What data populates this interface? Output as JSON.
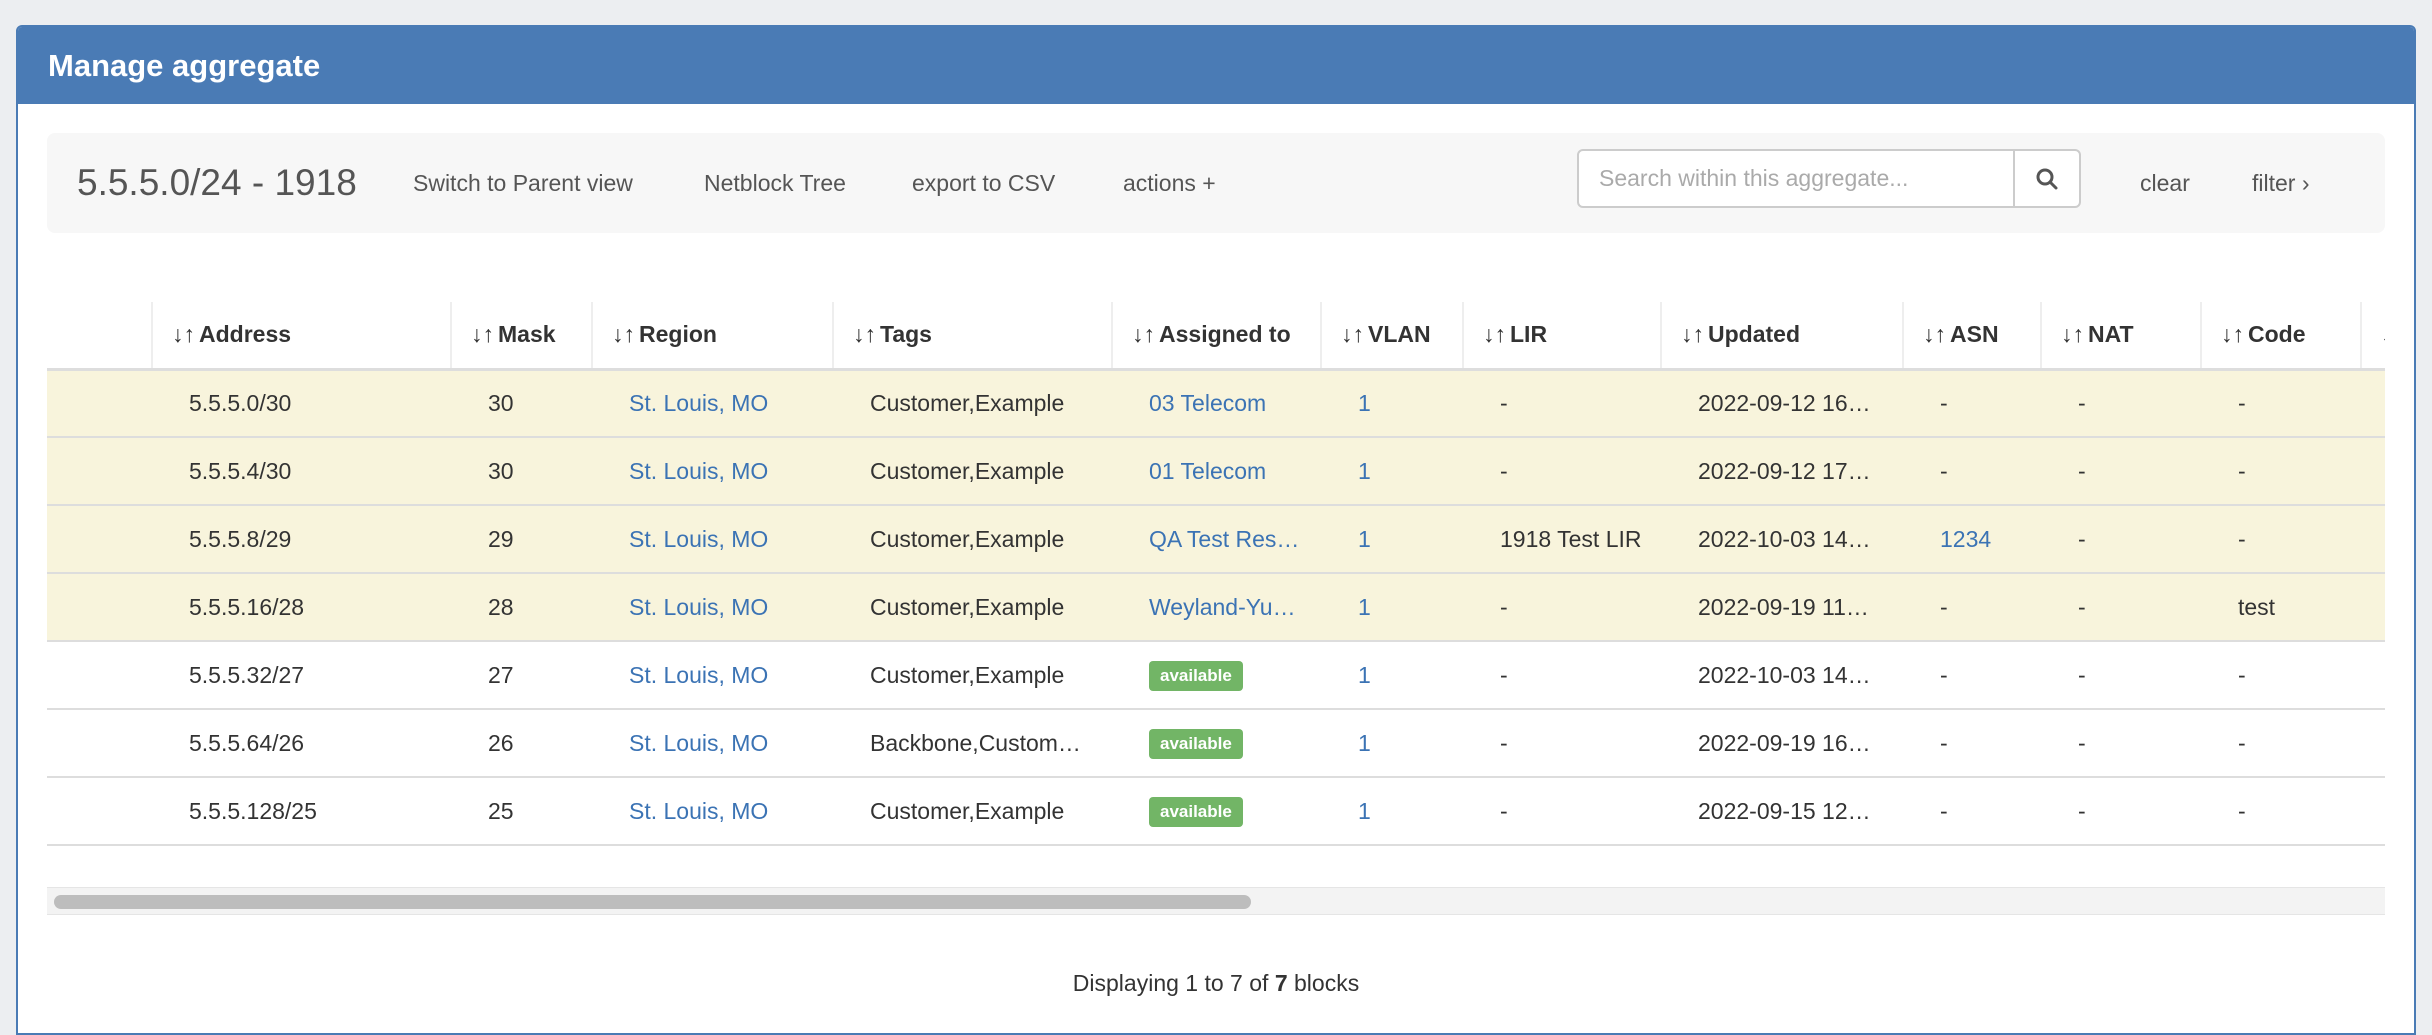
{
  "window": {
    "title": "Manage aggregate"
  },
  "toolbar": {
    "title": "5.5.5.0/24 - 1918",
    "switch_parent": "Switch to Parent view",
    "netblock_tree": "Netblock Tree",
    "export_csv": "export to CSV",
    "actions": "actions +",
    "search_placeholder": "Search within this aggregate...",
    "search_value": "",
    "clear": "clear",
    "filter": "filter ›"
  },
  "table": {
    "sort_icon": "↓↑",
    "columns": [
      "",
      "Address",
      "Mask",
      "Region",
      "Tags",
      "Assigned to",
      "VLAN",
      "LIR",
      "Updated",
      "ASN",
      "NAT",
      "Code",
      ""
    ],
    "rows": [
      {
        "highlight": true,
        "address": "5.5.5.0/30",
        "mask": "30",
        "region": "St. Louis, MO",
        "tags": "Customer,Example",
        "assigned": "03 Telecom",
        "assigned_badge": false,
        "vlan": "1",
        "lir": "-",
        "updated": "2022-09-12 16…",
        "asn": "-",
        "asn_link": false,
        "nat": "-",
        "code": "-"
      },
      {
        "highlight": true,
        "address": "5.5.5.4/30",
        "mask": "30",
        "region": "St. Louis, MO",
        "tags": "Customer,Example",
        "assigned": "01 Telecom",
        "assigned_badge": false,
        "vlan": "1",
        "lir": "-",
        "updated": "2022-09-12 17…",
        "asn": "-",
        "asn_link": false,
        "nat": "-",
        "code": "-"
      },
      {
        "highlight": true,
        "address": "5.5.5.8/29",
        "mask": "29",
        "region": "St. Louis, MO",
        "tags": "Customer,Example",
        "assigned": "QA Test Res…",
        "assigned_badge": false,
        "vlan": "1",
        "lir": "1918 Test LIR",
        "updated": "2022-10-03 14…",
        "asn": "1234",
        "asn_link": true,
        "nat": "-",
        "code": "-"
      },
      {
        "highlight": true,
        "address": "5.5.5.16/28",
        "mask": "28",
        "region": "St. Louis, MO",
        "tags": "Customer,Example",
        "assigned": "Weyland-Yu…",
        "assigned_badge": false,
        "vlan": "1",
        "lir": "-",
        "updated": "2022-09-19 11…",
        "asn": "-",
        "asn_link": false,
        "nat": "-",
        "code": "test"
      },
      {
        "highlight": false,
        "address": "5.5.5.32/27",
        "mask": "27",
        "region": "St. Louis, MO",
        "tags": "Customer,Example",
        "assigned": "available",
        "assigned_badge": true,
        "vlan": "1",
        "lir": "-",
        "updated": "2022-10-03 14…",
        "asn": "-",
        "asn_link": false,
        "nat": "-",
        "code": "-"
      },
      {
        "highlight": false,
        "address": "5.5.5.64/26",
        "mask": "26",
        "region": "St. Louis, MO",
        "tags": "Backbone,Custom…",
        "assigned": "available",
        "assigned_badge": true,
        "vlan": "1",
        "lir": "-",
        "updated": "2022-09-19 16…",
        "asn": "-",
        "asn_link": false,
        "nat": "-",
        "code": "-"
      },
      {
        "highlight": false,
        "address": "5.5.5.128/25",
        "mask": "25",
        "region": "St. Louis, MO",
        "tags": "Customer,Example",
        "assigned": "available",
        "assigned_badge": true,
        "vlan": "1",
        "lir": "-",
        "updated": "2022-09-15 12…",
        "asn": "-",
        "asn_link": false,
        "nat": "-",
        "code": "-"
      }
    ]
  },
  "footer": {
    "prefix": "Displaying 1 to 7 of ",
    "count": "7",
    "suffix": " blocks"
  },
  "colors": {
    "header": "#4a7bb5",
    "link": "#3b73b4",
    "available_badge": "#72b566",
    "highlight_row": "#f8f4dc"
  }
}
